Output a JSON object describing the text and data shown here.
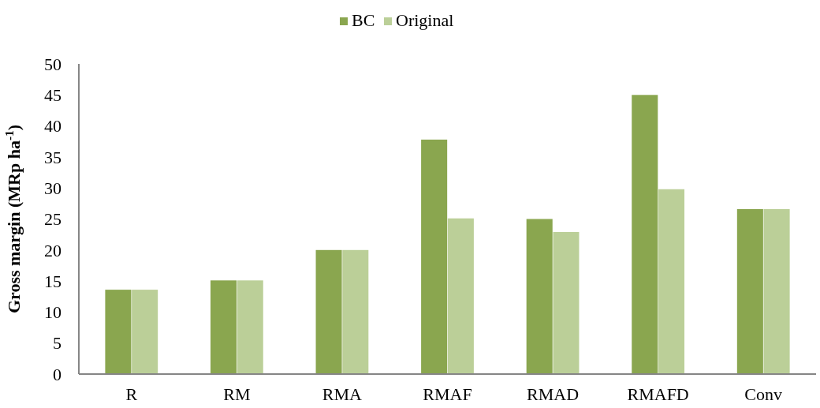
{
  "chart_data": {
    "type": "bar",
    "ylabel": "Gross margin (MRp ha$^{-1}$)",
    "categories": [
      "R",
      "RM",
      "RMA",
      "RMAF",
      "RMAD",
      "RMAFD",
      "Conv"
    ],
    "series": [
      {
        "name": "BC",
        "color": "#8aa64f",
        "values": [
          13.6,
          15.1,
          20,
          37.8,
          25,
          45,
          26.6
        ]
      },
      {
        "name": "Original",
        "color": "#bbcf98",
        "values": [
          13.6,
          15.1,
          20,
          25.1,
          22.9,
          29.8,
          26.6
        ]
      }
    ],
    "ylim": [
      0,
      50
    ],
    "yticks": [
      0,
      5,
      10,
      15,
      20,
      25,
      30,
      35,
      40,
      45,
      50
    ],
    "legend": "top",
    "grid": false
  }
}
